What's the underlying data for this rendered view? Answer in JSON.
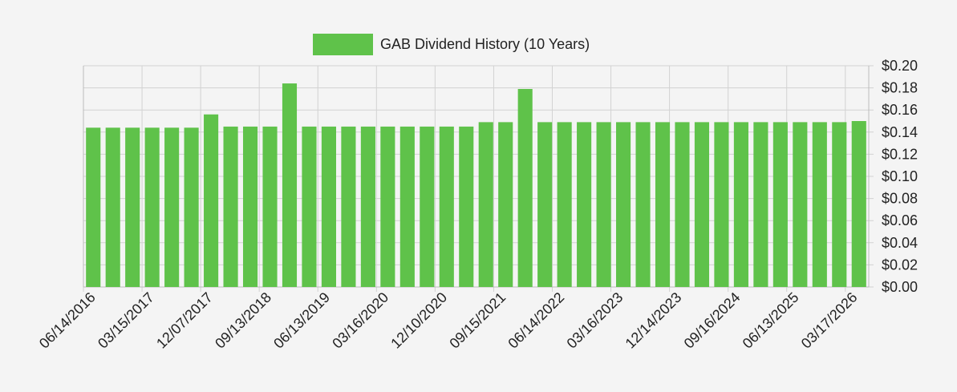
{
  "colors": {
    "bar": "#5fc24a",
    "grid": "#d2d2d2",
    "axis": "#bbbbbb",
    "background": "#f4f4f4"
  },
  "chart_data": {
    "type": "bar",
    "title": "",
    "xlabel": "",
    "ylabel": "",
    "legend": {
      "label": "GAB Dividend History (10 Years)",
      "placement": "top-center"
    },
    "ylim": [
      0,
      0.2
    ],
    "y_ticks": [
      "$0.00",
      "$0.02",
      "$0.04",
      "$0.06",
      "$0.08",
      "$0.10",
      "$0.12",
      "$0.14",
      "$0.16",
      "$0.18",
      "$0.20"
    ],
    "y_axis_side": "right",
    "x_tick_labels": [
      "06/14/2016",
      "03/15/2017",
      "12/07/2017",
      "09/13/2018",
      "06/13/2019",
      "03/16/2020",
      "12/10/2020",
      "09/15/2021",
      "06/14/2022",
      "03/16/2023",
      "12/14/2023",
      "09/16/2024",
      "06/13/2025",
      "03/17/2026"
    ],
    "grid": true,
    "series": [
      {
        "name": "GAB Dividend History (10 Years)",
        "values": [
          0.144,
          0.144,
          0.144,
          0.144,
          0.144,
          0.144,
          0.156,
          0.145,
          0.145,
          0.145,
          0.184,
          0.145,
          0.145,
          0.145,
          0.145,
          0.145,
          0.145,
          0.145,
          0.145,
          0.145,
          0.149,
          0.149,
          0.179,
          0.149,
          0.149,
          0.149,
          0.149,
          0.149,
          0.149,
          0.149,
          0.149,
          0.149,
          0.149,
          0.149,
          0.149,
          0.149,
          0.149,
          0.149,
          0.149,
          0.15
        ]
      }
    ]
  }
}
